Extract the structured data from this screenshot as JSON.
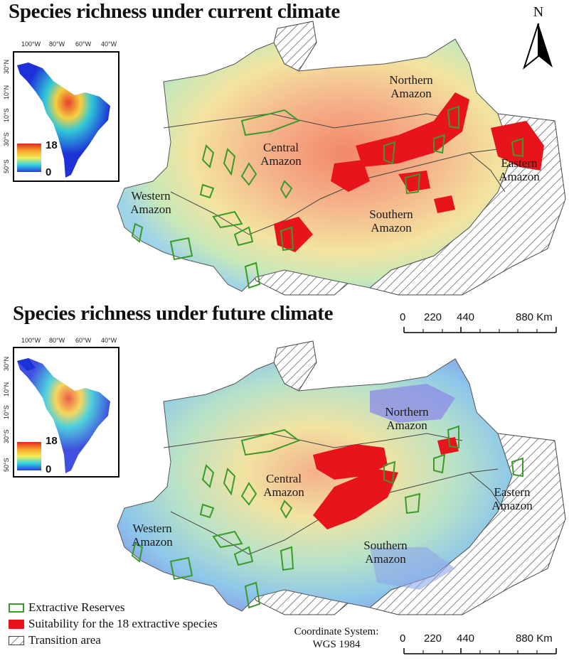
{
  "maps": [
    {
      "title": "Species richness under current climate",
      "regions": {
        "northern": "Northern Amazon",
        "central": "Central Amazon",
        "eastern": "Eastern Amazon",
        "western": "Western Amazon",
        "southern": "Southern Amazon"
      },
      "inset": {
        "lon_ticks": [
          "100°W",
          "80°W",
          "60°W",
          "40°W"
        ],
        "lat_ticks": [
          "30°N",
          "10°N",
          "10°S",
          "30°S",
          "50°S"
        ],
        "legend_max": "18",
        "legend_min": "0"
      }
    },
    {
      "title": "Species richness under future climate",
      "regions": {
        "northern": "Northern Amazon",
        "central": "Central Amazon",
        "eastern": "Eastern Amazon",
        "western": "Western Amazon",
        "southern": "Southern Amazon"
      },
      "inset": {
        "lon_ticks": [
          "100°W",
          "80°W",
          "60°W",
          "40°W"
        ],
        "lat_ticks": [
          "30°N",
          "10°N",
          "10°S",
          "30°S",
          "50°S"
        ],
        "legend_max": "18",
        "legend_min": "0"
      }
    }
  ],
  "north_arrow": "N",
  "scale_bar": {
    "labels": [
      "0",
      "220",
      "440",
      "880 Km"
    ]
  },
  "legend": {
    "extractive_reserves": "Extractive Reserves",
    "suitability": "Suitability for the 18 extractive species",
    "transition": "Transition area"
  },
  "coordinate_system": {
    "line1": "Coordinate System:",
    "line2": "WGS 1984"
  },
  "colors": {
    "suitability": "#e8141c",
    "reserves": "#3a9a2a",
    "richness_low": "#3a4fd8",
    "richness_mid": "#f0e89a",
    "richness_high": "#f08060"
  }
}
